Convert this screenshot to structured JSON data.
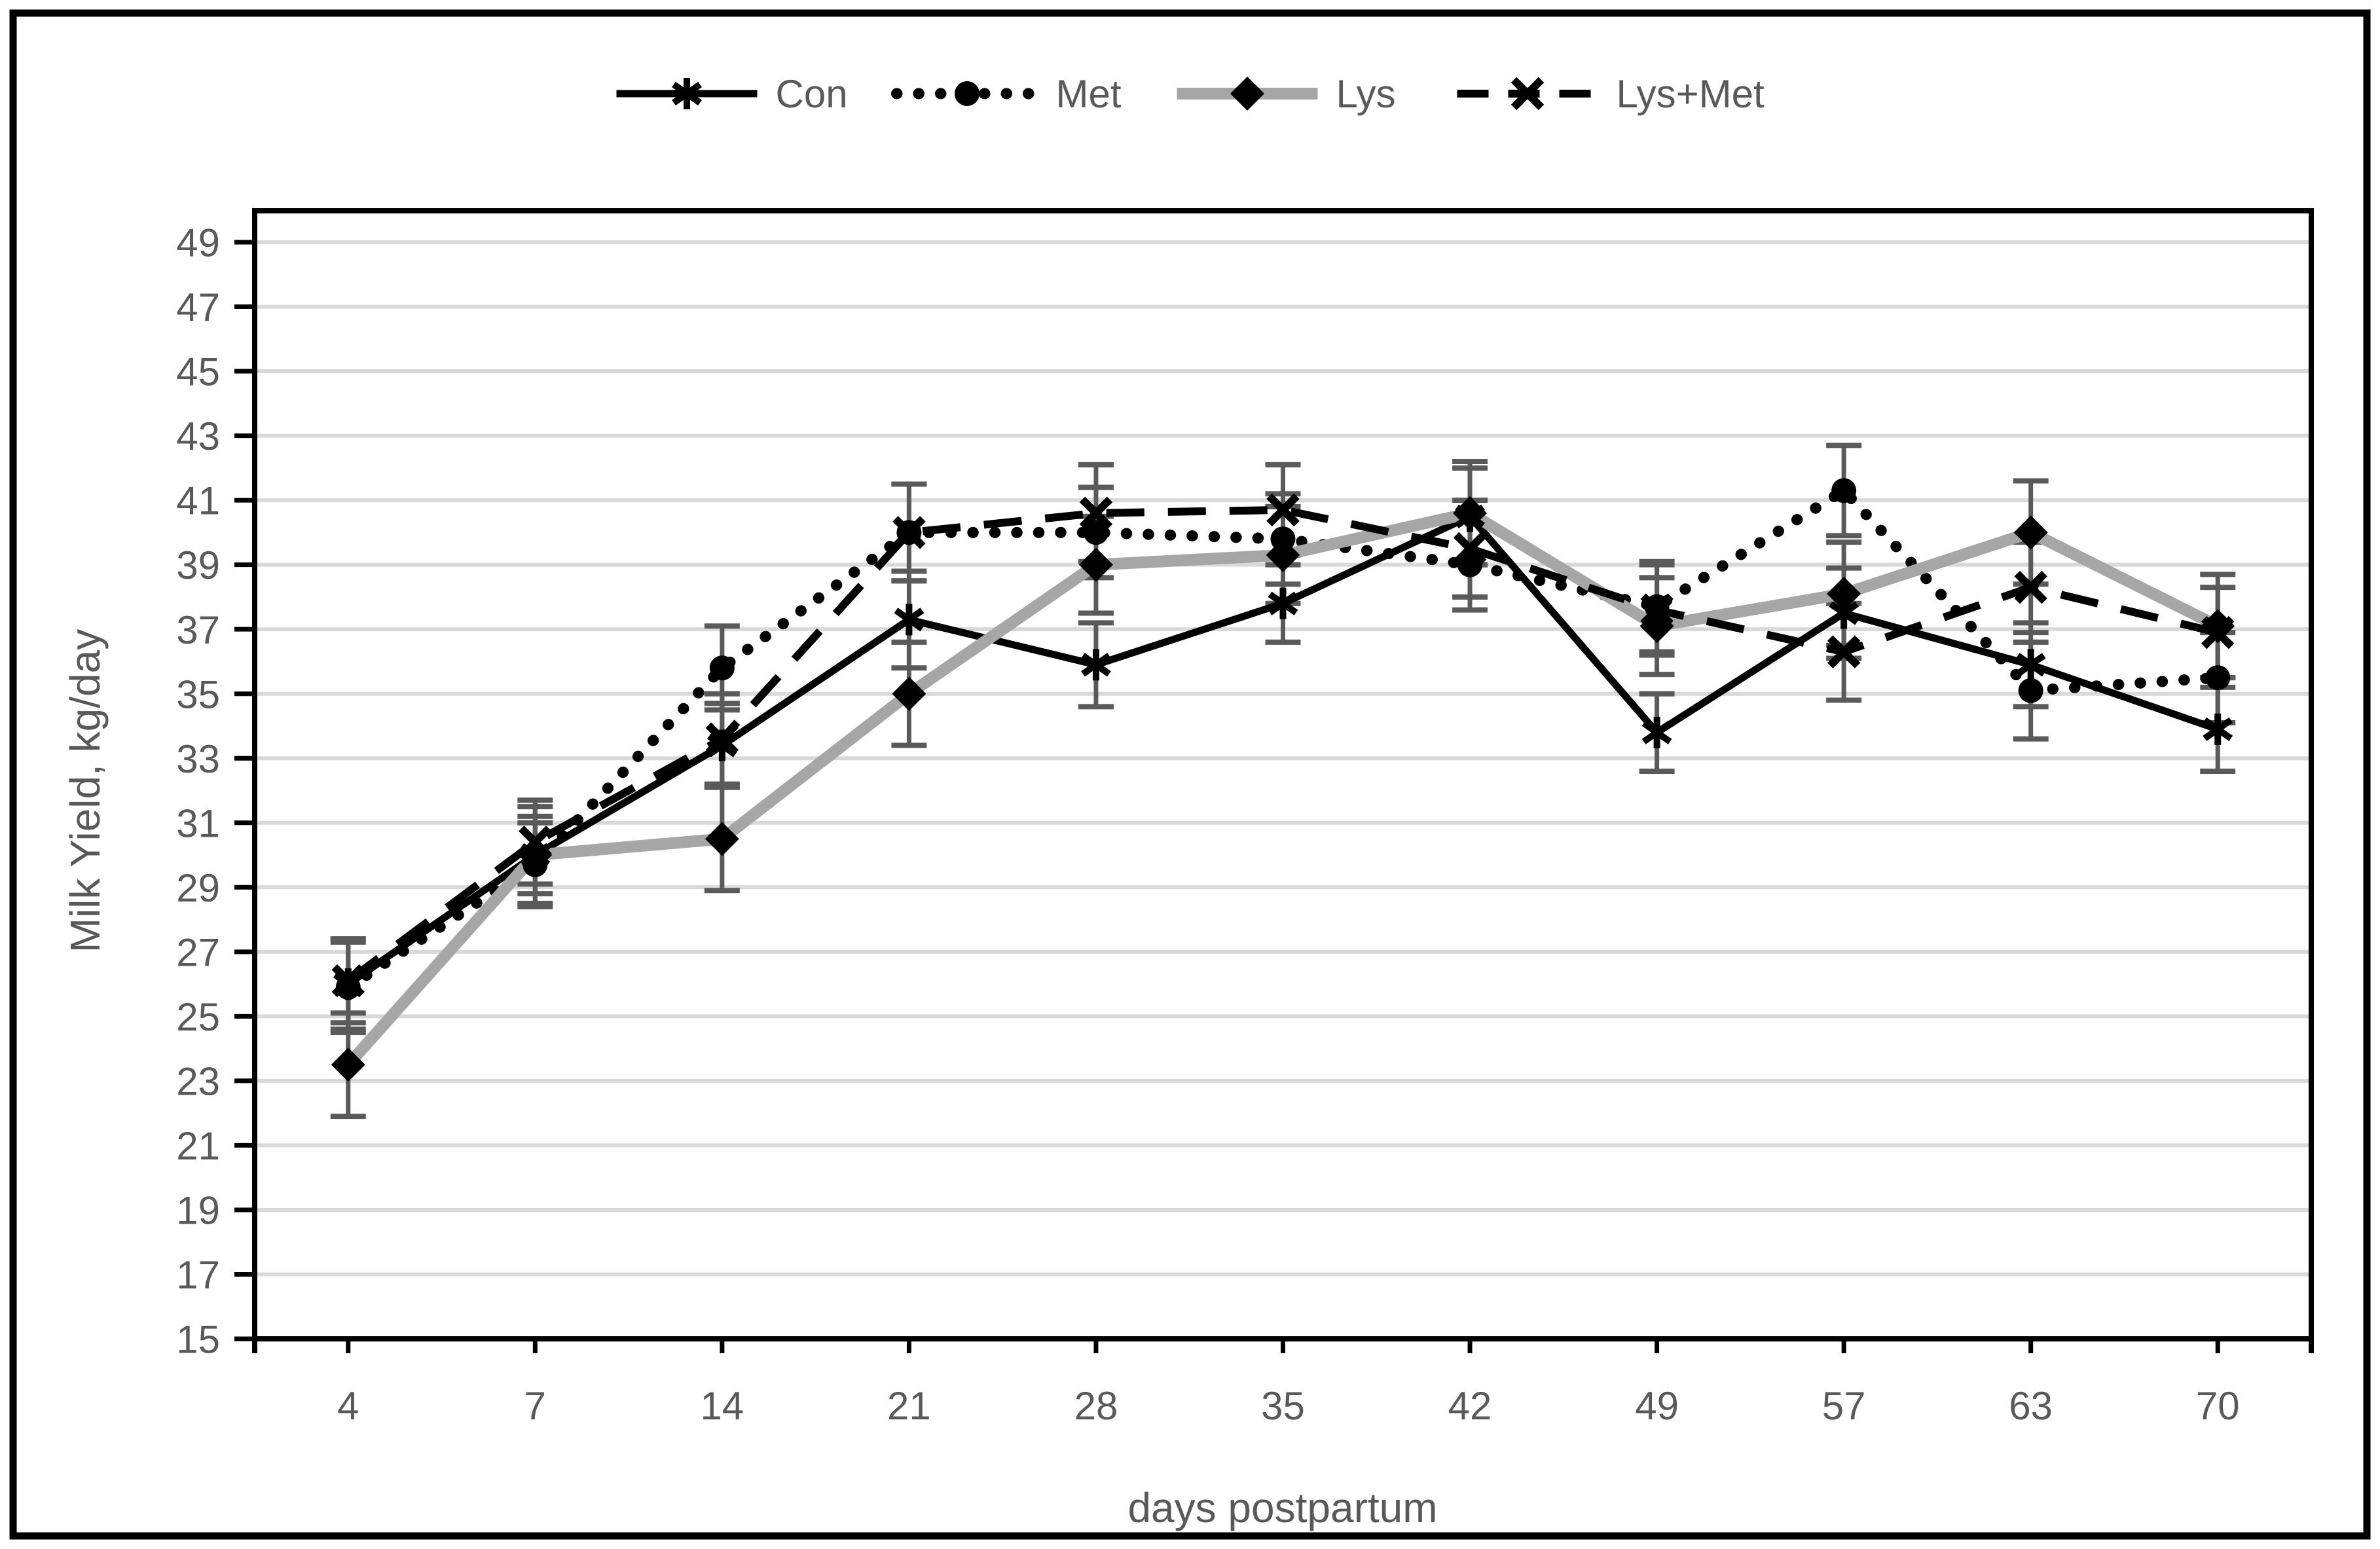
{
  "figure": {
    "background": "#ffffff",
    "border_color": "#000000"
  },
  "chart_data": {
    "type": "line",
    "title": "",
    "xlabel": "days postpartum",
    "ylabel": "Milk Yield, kg/day",
    "x_categories": [
      "4",
      "7",
      "14",
      "21",
      "28",
      "35",
      "42",
      "49",
      "57",
      "63",
      "70"
    ],
    "ylim": [
      15,
      49
    ],
    "ytick_step": 2,
    "y_tick_labels": [
      "15",
      "17",
      "19",
      "21",
      "23",
      "25",
      "27",
      "29",
      "31",
      "33",
      "35",
      "37",
      "39",
      "41",
      "43",
      "45",
      "47",
      "49"
    ],
    "grid": "horizontal",
    "gridline_color": "#d9d9d9",
    "axis_text_color": "#595959",
    "error_bar_color": "#5a5a5a",
    "legend_position": "top",
    "legend_entries": [
      "Con",
      "Met",
      "Lys",
      "Lys+Met"
    ],
    "series": [
      {
        "name": "Con",
        "line_style": "solid",
        "marker": "asterisk",
        "color": "#000000",
        "marker_color": "#000000",
        "values": [
          26.0,
          30.0,
          33.4,
          37.3,
          35.9,
          37.8,
          40.5,
          33.8,
          37.5,
          35.9,
          33.9
        ],
        "error_bars": [
          1.4,
          1.2,
          1.3,
          1.5,
          1.3,
          1.2,
          1.5,
          1.2,
          1.4,
          1.3,
          1.3
        ]
      },
      {
        "name": "Met",
        "line_style": "dotted",
        "marker": "circle",
        "color": "#000000",
        "marker_color": "#000000",
        "values": [
          25.9,
          29.7,
          35.8,
          40.0,
          40.0,
          39.8,
          39.0,
          37.7,
          41.3,
          35.1,
          35.5
        ],
        "error_bars": [
          1.4,
          1.3,
          1.3,
          1.5,
          1.4,
          1.4,
          1.4,
          1.4,
          1.4,
          1.5,
          1.4
        ]
      },
      {
        "name": "Lys",
        "line_style": "solid",
        "marker": "diamond",
        "color": "#a6a6a6",
        "marker_color": "#000000",
        "values": [
          23.5,
          30.0,
          30.5,
          35.0,
          39.0,
          39.3,
          40.6,
          37.1,
          38.1,
          40.0,
          37.1
        ],
        "error_bars": [
          1.6,
          1.5,
          1.6,
          1.6,
          1.5,
          1.5,
          1.6,
          1.5,
          1.6,
          1.6,
          1.6
        ]
      },
      {
        "name": "Lys+Met",
        "line_style": "dashed",
        "marker": "x",
        "color": "#000000",
        "marker_color": "#000000",
        "values": [
          26.1,
          30.4,
          33.6,
          40.0,
          40.6,
          40.7,
          39.5,
          37.6,
          36.3,
          38.3,
          36.9
        ],
        "error_bars": [
          1.3,
          1.3,
          1.4,
          1.5,
          1.5,
          1.4,
          1.5,
          1.4,
          1.5,
          1.4,
          1.4
        ]
      }
    ]
  }
}
